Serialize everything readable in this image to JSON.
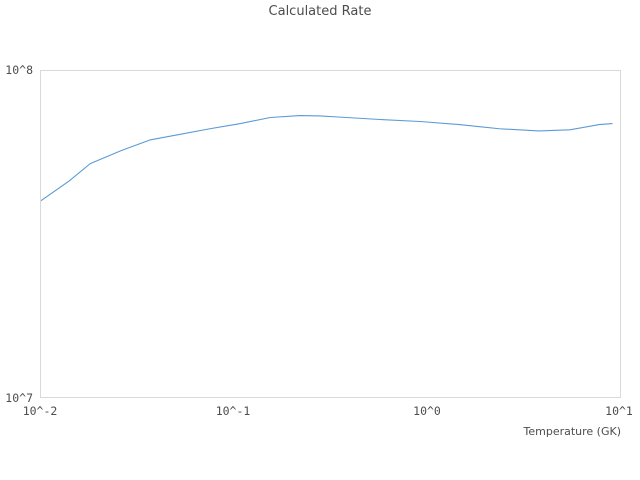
{
  "chart_data": {
    "type": "line",
    "title": "Calculated Rate",
    "xlabel": "Temperature (GK)",
    "ylabel": "",
    "xscale": "log",
    "yscale": "log",
    "xlim": [
      0.01,
      10
    ],
    "ylim": [
      10000000.0,
      100000000.0
    ],
    "xtick_labels": [
      "10^-2",
      "10^-1",
      "10^0",
      "10^1"
    ],
    "ytick_labels": [
      "10^7",
      "10^8"
    ],
    "grid": "off",
    "legend": "none",
    "colors": {
      "line": "#5b9ad7",
      "axis_border": "#d9d9d9",
      "text": "#4d4d4d"
    },
    "series": [
      {
        "name": "Calculated Rate",
        "x": [
          0.01,
          0.014,
          0.018,
          0.026,
          0.037,
          0.053,
          0.075,
          0.108,
          0.154,
          0.22,
          0.28,
          0.354,
          0.57,
          0.92,
          1.47,
          2.37,
          3.8,
          5.5,
          7.8,
          9.1
        ],
        "y": [
          40000000.0,
          46000000.0,
          52000000.0,
          57000000.0,
          61500000.0,
          64000000.0,
          66500000.0,
          69000000.0,
          72000000.0,
          73000000.0,
          72800000.0,
          72200000.0,
          71000000.0,
          70000000.0,
          68500000.0,
          66500000.0,
          65500000.0,
          66000000.0,
          68500000.0,
          69000000.0
        ]
      }
    ]
  }
}
